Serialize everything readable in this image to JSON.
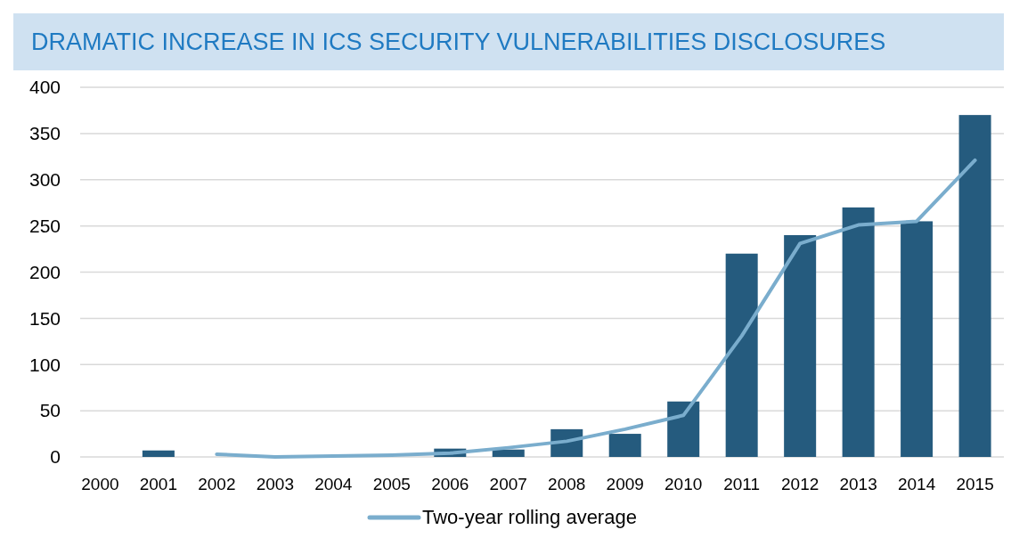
{
  "chart_data": {
    "type": "bar",
    "title": "DRAMATIC INCREASE IN ICS SECURITY VULNERABILITIES DISCLOSURES",
    "categories": [
      "2000",
      "2001",
      "2002",
      "2003",
      "2004",
      "2005",
      "2006",
      "2007",
      "2008",
      "2009",
      "2010",
      "2011",
      "2012",
      "2013",
      "2014",
      "2015"
    ],
    "series": [
      {
        "color": "#255b7e",
        "values": [
          0,
          7,
          0,
          0,
          0,
          0,
          9,
          8,
          30,
          25,
          60,
          220,
          240,
          270,
          255,
          370
        ]
      },
      {
        "type": "line",
        "name": "Two-year rolling average",
        "color": "#7aadcd",
        "values": [
          null,
          null,
          3,
          0,
          1,
          2,
          4,
          10,
          17,
          30,
          45,
          131,
          231,
          251,
          255,
          321
        ]
      }
    ],
    "ylim": [
      0,
      400
    ],
    "yticks": [
      0,
      50,
      100,
      150,
      200,
      250,
      300,
      350,
      400
    ],
    "grid": "y",
    "legend": "bottom"
  }
}
